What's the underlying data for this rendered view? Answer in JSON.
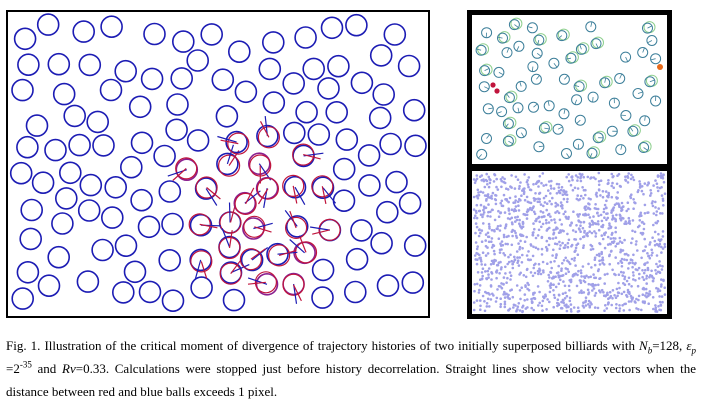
{
  "figure": {
    "panels": [
      {
        "name": "billiard-trajectory-panel",
        "description_visible": false
      },
      {
        "name": "colored-balls-panel"
      },
      {
        "name": "dense-particles-panel"
      }
    ],
    "colors": {
      "blue_ball": "#1c1cb4",
      "red_ball": "#c0143c",
      "purple_overlap": "#8a1f8f",
      "green_ring": "#8fd08f",
      "teal_ball": "#3d7f9a",
      "orange_ball": "#e86a1a",
      "dense_dot": "#a0a0e8"
    }
  },
  "caption": {
    "p1": "Fig. 1. Illustration of the critical moment of divergence of trajectory histories of two initially superposed billiards with ",
    "nb_sym": "N",
    "nb_sub": "b",
    "nb_val": "=128, ",
    "eps_sym": "ε",
    "eps_sub": "p",
    "eps_eq": " =2",
    "eps_exp": "-35",
    "and_text": " and ",
    "rv_sym": "Rv",
    "p2": "=0.33. Calculations were stopped just before history decorrelation. Straight lines show velocity vectors when the distance between red and blue balls exceeds 1 pixel."
  }
}
